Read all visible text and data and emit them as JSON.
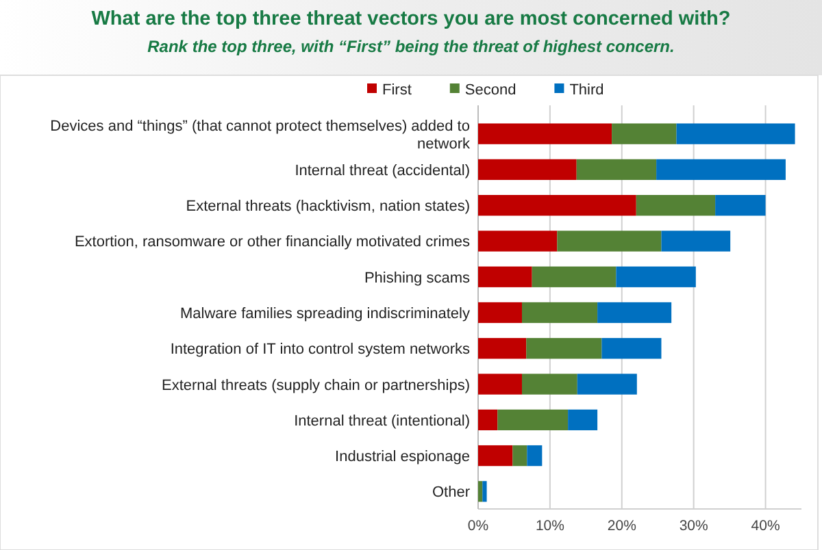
{
  "chart_data": {
    "type": "bar",
    "orientation": "horizontal",
    "stacked": true,
    "title": "What are the top three threat vectors you are most concerned with?",
    "subtitle": "Rank the top three, with “First” being the threat of highest concern.",
    "categories": [
      "Devices and “things” (that cannot protect themselves) added to network",
      "Internal threat (accidental)",
      "External threats (hacktivism, nation states)",
      "Extortion, ransomware or other financially motivated crimes",
      "Phishing scams",
      "Malware families spreading indiscriminately",
      "Integration of IT into control system networks",
      "External threats (supply chain or partnerships)",
      "Internal threat (intentional)",
      "Industrial espionage",
      "Other"
    ],
    "series": [
      {
        "name": "First",
        "color": "#c00000",
        "values": [
          18.6,
          13.7,
          22.0,
          11.0,
          7.5,
          6.1,
          6.7,
          6.1,
          2.7,
          4.8,
          0
        ]
      },
      {
        "name": "Second",
        "color": "#548235",
        "values": [
          9.0,
          11.1,
          11.0,
          14.5,
          11.7,
          10.5,
          10.5,
          7.7,
          9.8,
          2.0,
          0.6
        ]
      },
      {
        "name": "Third",
        "color": "#0070c0",
        "values": [
          16.5,
          18.0,
          7.0,
          9.6,
          11.1,
          10.3,
          8.3,
          8.3,
          4.1,
          2.1,
          0.6
        ]
      }
    ],
    "xlim": [
      0,
      45
    ],
    "xticks": [
      {
        "value": 0,
        "label": "0%"
      },
      {
        "value": 10,
        "label": "10%"
      },
      {
        "value": 20,
        "label": "20%"
      },
      {
        "value": 30,
        "label": "30%"
      },
      {
        "value": 40,
        "label": "40%"
      }
    ],
    "grid": "x",
    "legend": "top"
  }
}
